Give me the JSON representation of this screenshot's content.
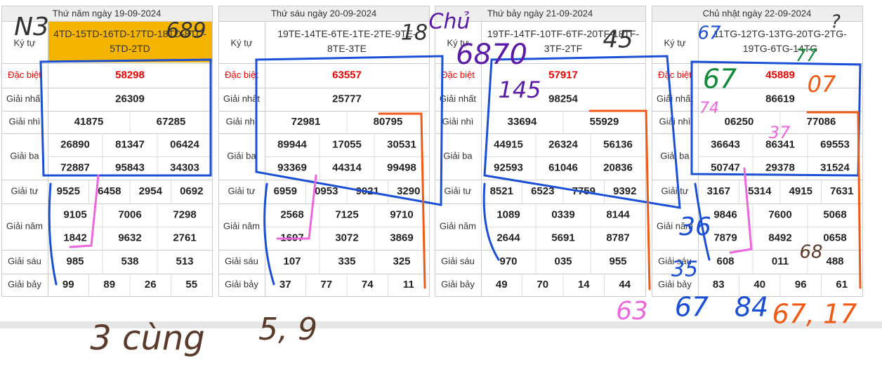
{
  "row_labels": [
    "Ký tự",
    "Đặc biệt",
    "Giải nhất",
    "Giải nhì",
    "Giải ba",
    "Giải tư",
    "Giải năm",
    "Giải sáu",
    "Giải bảy"
  ],
  "tables": [
    {
      "date": "Thứ năm ngày 19-09-2024",
      "ky_tu": "4TD-15TD-16TD-17TD-18TD-8TD-5TD-2TD",
      "prizes": [
        [
          "58298"
        ],
        [
          "26309"
        ],
        [
          "41875",
          "67285"
        ],
        [
          "26890",
          "81347",
          "06424",
          "72887",
          "95843",
          "34303"
        ],
        [
          "9525",
          "6458",
          "2954",
          "0692"
        ],
        [
          "9105",
          "7006",
          "7298",
          "1842",
          "9632",
          "2761"
        ],
        [
          "985",
          "538",
          "513"
        ],
        [
          "99",
          "89",
          "26",
          "55"
        ]
      ]
    },
    {
      "date": "Thứ sáu ngày 20-09-2024",
      "ky_tu": "19TE-14TE-6TE-1TE-2TE-9TE-8TE-3TE",
      "prizes": [
        [
          "63557"
        ],
        [
          "25777"
        ],
        [
          "72981",
          "80795"
        ],
        [
          "89944",
          "17055",
          "30531",
          "93369",
          "44314",
          "99498"
        ],
        [
          "6959",
          "0953",
          "9021",
          "3290"
        ],
        [
          "2568",
          "7125",
          "9710",
          "1697",
          "3072",
          "3869"
        ],
        [
          "107",
          "335",
          "325"
        ],
        [
          "37",
          "77",
          "74",
          "11"
        ]
      ]
    },
    {
      "date": "Thứ bảy ngày 21-09-2024",
      "ky_tu": "19TF-14TF-10TF-6TF-20TF-18TF-3TF-2TF",
      "prizes": [
        [
          "57917"
        ],
        [
          "98254"
        ],
        [
          "33694",
          "55929"
        ],
        [
          "44915",
          "26324",
          "56136",
          "92593",
          "61046",
          "20836"
        ],
        [
          "8521",
          "6523",
          "7759",
          "9392"
        ],
        [
          "1089",
          "0339",
          "8144",
          "2644",
          "5691",
          "8787"
        ],
        [
          "970",
          "035",
          "955"
        ],
        [
          "49",
          "70",
          "14",
          "44"
        ]
      ]
    },
    {
      "date": "Chủ nhật ngày 22-09-2024",
      "ky_tu": "11TG-12TG-13TG-20TG-2TG-19TG-6TG-14TG",
      "prizes": [
        [
          "45889"
        ],
        [
          "86619"
        ],
        [
          "06250",
          "77086"
        ],
        [
          "36643",
          "86341",
          "69553",
          "50747",
          "29378",
          "31524"
        ],
        [
          "3167",
          "5314",
          "4915",
          "7631"
        ],
        [
          "9846",
          "7600",
          "5068",
          "7879",
          "8492",
          "0658"
        ],
        [
          "608",
          "011",
          "488"
        ],
        [
          "83",
          "40",
          "96",
          "61"
        ]
      ]
    }
  ],
  "annotations": [
    {
      "text": "N3",
      "color": "#333"
    },
    {
      "text": "689",
      "color": "#333"
    },
    {
      "text": "18",
      "color": "#333"
    },
    {
      "text": "Chủ",
      "color": "#5a1aa8"
    },
    {
      "text": "6870",
      "color": "#5a1aa8"
    },
    {
      "text": "145",
      "color": "#5a1aa8"
    },
    {
      "text": "45",
      "color": "#333"
    },
    {
      "text": "67",
      "color": "#1a4fd6"
    },
    {
      "text": "?",
      "color": "#333"
    },
    {
      "text": "77",
      "color": "#138a3a"
    },
    {
      "text": "67",
      "color": "#138a3a"
    },
    {
      "text": "07",
      "color": "#f05a14"
    },
    {
      "text": "74",
      "color": "#ee66dd"
    },
    {
      "text": "37",
      "color": "#ee66dd"
    },
    {
      "text": "36",
      "color": "#1a4fd6"
    },
    {
      "text": "35",
      "color": "#1a4fd6"
    },
    {
      "text": "68",
      "color": "#5a3a2a"
    },
    {
      "text": "63",
      "color": "#ee66dd"
    },
    {
      "text": "67",
      "color": "#1a4fd6"
    },
    {
      "text": "84",
      "color": "#1a4fd6"
    },
    {
      "text": "67, 17",
      "color": "#f05a14"
    },
    {
      "text": "3 cùng",
      "color": "#5a3a2a"
    },
    {
      "text": "5, 9",
      "color": "#5a3a2a"
    }
  ]
}
